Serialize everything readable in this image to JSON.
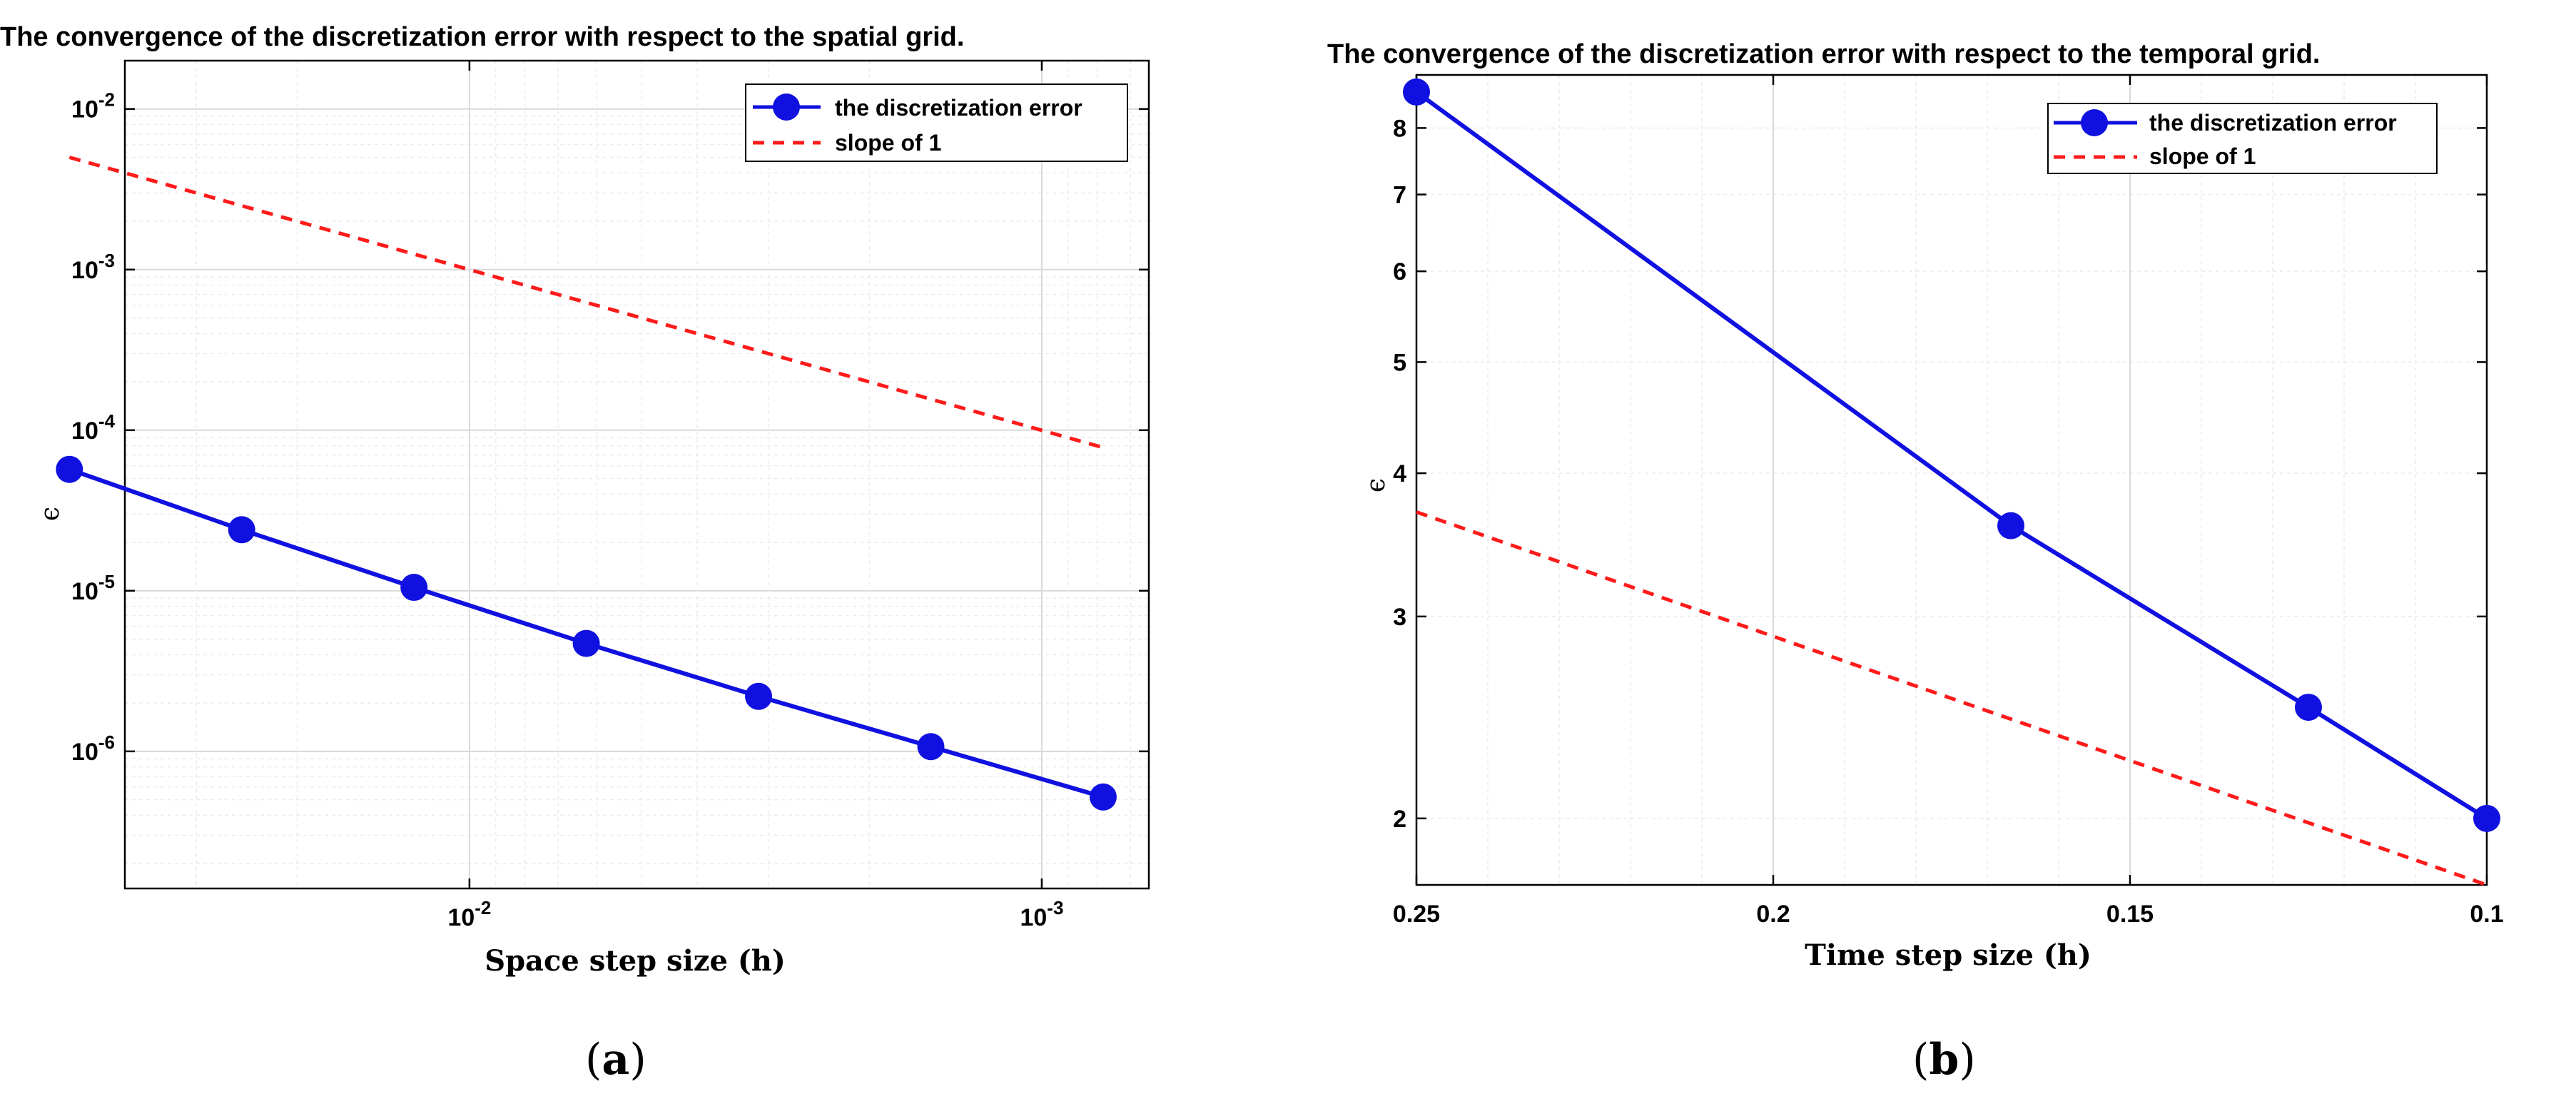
{
  "colors": {
    "series": "#1010e0",
    "reference": "#ff1a1a",
    "grid_major": "#d9d9d9",
    "grid_minor": "#ececec",
    "axis": "#000000"
  },
  "chart_data": [
    {
      "type": "line",
      "panel_label": "a",
      "title": "The convergence of the discretization error with respect to the spatial grid.",
      "xlabel": "Space step size (h)",
      "ylabel": "ϵ",
      "xscale": "log",
      "yscale": "log",
      "x_reversed": true,
      "xlim": [
        0.04,
        0.00065
      ],
      "ylim": [
        1.4e-07,
        0.02
      ],
      "grid": true,
      "legend_position": "top-right",
      "x_ticks": [
        {
          "value": 0.01,
          "base": "10",
          "exp": "-2"
        },
        {
          "value": 0.001,
          "base": "10",
          "exp": "-3"
        }
      ],
      "y_ticks": [
        {
          "value": 0.01,
          "base": "10",
          "exp": "-2"
        },
        {
          "value": 0.001,
          "base": "10",
          "exp": "-3"
        },
        {
          "value": 0.0001,
          "base": "10",
          "exp": "-4"
        },
        {
          "value": 1e-05,
          "base": "10",
          "exp": "-5"
        },
        {
          "value": 1e-06,
          "base": "10",
          "exp": "-6"
        }
      ],
      "series": [
        {
          "name": "the discretization error",
          "style": "solid-markers",
          "x": [
            0.05,
            0.025,
            0.0125,
            0.00625,
            0.003125,
            0.0015625,
            0.00078125
          ],
          "y": [
            5.7e-05,
            2.4e-05,
            1.05e-05,
            4.7e-06,
            2.2e-06,
            1.07e-06,
            5.2e-07
          ]
        },
        {
          "name": "slope of 1",
          "style": "dashed",
          "x": [
            0.05,
            0.00078125
          ],
          "y": [
            0.005,
            7.8e-05
          ]
        }
      ]
    },
    {
      "type": "line",
      "panel_label": "b",
      "title": "The convergence of the discretization error with respect to the temporal grid.",
      "xlabel": "Time step size (h)",
      "ylabel": "ϵ",
      "xscale": "linear",
      "yscale": "log",
      "x_reversed": true,
      "xlim": [
        0.25,
        0.1
      ],
      "ylim": [
        1.75,
        8.9
      ],
      "grid": true,
      "legend_position": "top-right",
      "x_ticks": [
        {
          "value": 0.25,
          "label": "0.25"
        },
        {
          "value": 0.2,
          "label": "0.2"
        },
        {
          "value": 0.15,
          "label": "0.15"
        },
        {
          "value": 0.1,
          "label": "0.1"
        }
      ],
      "y_ticks": [
        {
          "value": 2,
          "label": "2"
        },
        {
          "value": 3,
          "label": "3"
        },
        {
          "value": 4,
          "label": "4"
        },
        {
          "value": 5,
          "label": "5"
        },
        {
          "value": 6,
          "label": "6"
        },
        {
          "value": 7,
          "label": "7"
        },
        {
          "value": 8,
          "label": "8"
        }
      ],
      "series": [
        {
          "name": "the discretization error",
          "style": "solid-markers",
          "x": [
            0.25,
            0.1667,
            0.125,
            0.1
          ],
          "y": [
            8.6,
            3.6,
            2.5,
            2.0
          ]
        },
        {
          "name": "slope of 1",
          "style": "dashed",
          "x": [
            0.25,
            0.1
          ],
          "y": [
            3.7,
            1.75
          ]
        }
      ]
    }
  ]
}
